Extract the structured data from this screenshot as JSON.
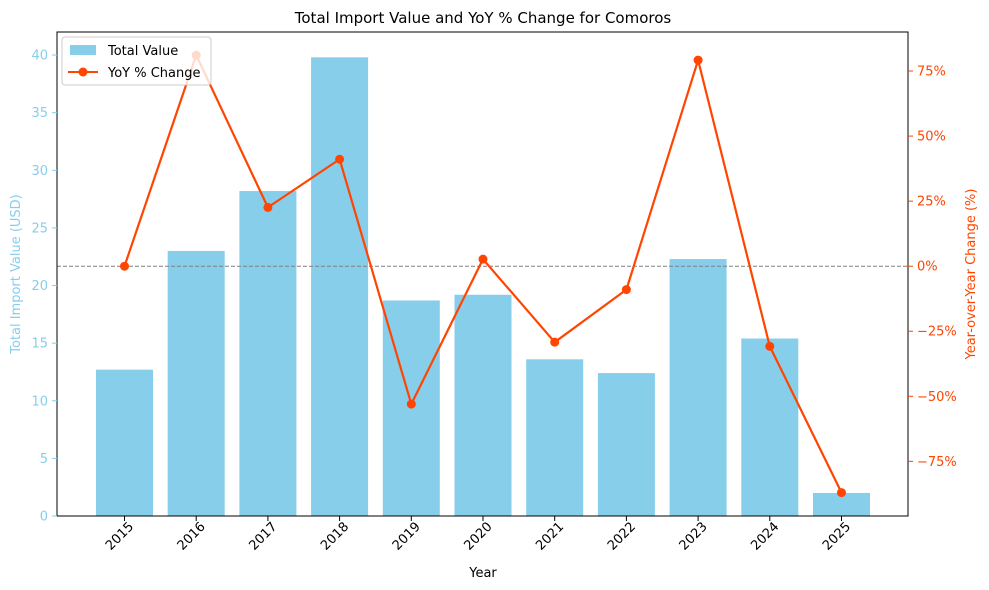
{
  "chart_data": {
    "type": "bar",
    "title": "Total Import Value and YoY % Change for Comoros",
    "xlabel": "Year",
    "ylabel_left": "Total Import Value (USD)",
    "ylabel_right": "Year-over-Year Change (%)",
    "categories": [
      "2015",
      "2016",
      "2017",
      "2018",
      "2019",
      "2020",
      "2021",
      "2022",
      "2023",
      "2024",
      "2025"
    ],
    "ylim_left": [
      0,
      42
    ],
    "ylim_right": [
      -96,
      90
    ],
    "yticks_left": [
      0,
      5,
      10,
      15,
      20,
      25,
      30,
      35,
      40
    ],
    "yticks_right": [
      -75,
      -50,
      -25,
      0,
      25,
      50,
      75
    ],
    "yticks_right_labels": [
      "−75%",
      "−50%",
      "−25%",
      "0%",
      "25%",
      "50%",
      "75%"
    ],
    "reference_line_right": 0,
    "legend_placement": "top-left",
    "series": [
      {
        "name": "Total Value",
        "kind": "bar",
        "axis": "left",
        "color": "#87CEEB",
        "values": [
          12.7,
          23.0,
          28.2,
          39.8,
          18.7,
          19.2,
          13.6,
          12.4,
          22.3,
          15.4,
          2.0
        ]
      },
      {
        "name": "YoY % Change",
        "kind": "line",
        "axis": "right",
        "color": "#FF4500",
        "values": [
          0.0,
          81.1,
          22.6,
          41.1,
          -53.0,
          2.7,
          -29.2,
          -9.0,
          79.2,
          -30.8,
          -87.0
        ]
      }
    ],
    "colors": {
      "left_axis": "#87CEEB",
      "right_axis": "#FF4500",
      "zero_line": "#808080"
    }
  }
}
